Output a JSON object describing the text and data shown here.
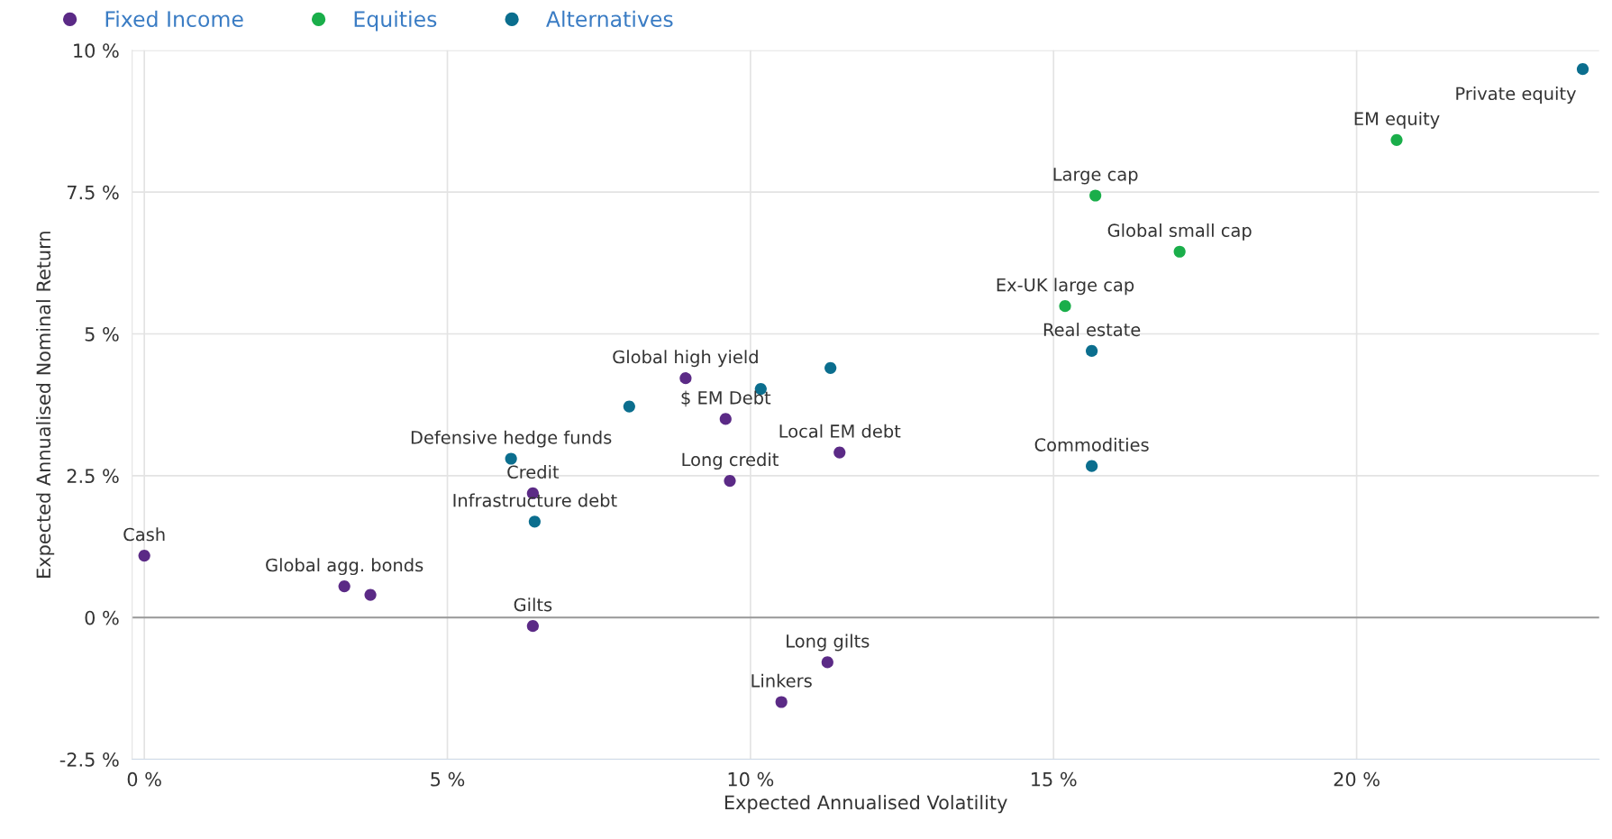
{
  "chart_data": {
    "type": "scatter",
    "xlabel": "Expected Annualised Volatility",
    "ylabel": "Expected Annualised Nominal Return",
    "xlim": [
      -0.2,
      24
    ],
    "ylim": [
      -2.5,
      10
    ],
    "xticks": [
      {
        "value": 0,
        "label": "0 %"
      },
      {
        "value": 5,
        "label": "5 %"
      },
      {
        "value": 10,
        "label": "10 %"
      },
      {
        "value": 15,
        "label": "15 %"
      },
      {
        "value": 20,
        "label": "20 %"
      }
    ],
    "yticks": [
      {
        "value": -2.5,
        "label": "-2.5 %"
      },
      {
        "value": 0,
        "label": "0 %"
      },
      {
        "value": 2.5,
        "label": "2.5 %"
      },
      {
        "value": 5,
        "label": "5 %"
      },
      {
        "value": 7.5,
        "label": "7.5 %"
      },
      {
        "value": 10,
        "label": "10 %"
      }
    ],
    "grid": true,
    "legend": "top left",
    "marker": "circle",
    "ref_lines": [
      {
        "axis": "y",
        "value": 0,
        "color": "#999999"
      }
    ],
    "series": [
      {
        "name": "Fixed Income",
        "color": "#5b2a86",
        "x": [
          0,
          3.3,
          3.73,
          8.93,
          9.59,
          11.47,
          9.66,
          6.41,
          6.41,
          11.27,
          10.51
        ],
        "values": [
          1.09,
          0.55,
          0.4,
          4.22,
          3.5,
          2.91,
          2.41,
          2.19,
          -0.15,
          -0.79,
          -1.49
        ]
      },
      {
        "name": "Equities",
        "color": "#1aae4a",
        "x": [
          15.69,
          20.66,
          17.08,
          15.19
        ],
        "values": [
          7.44,
          8.42,
          6.45,
          5.49
        ]
      },
      {
        "name": "Alternatives",
        "color": "#0b6e8e",
        "x": [
          23.73,
          15.63,
          15.63,
          11.32,
          10.17,
          8.0,
          6.05,
          6.44
        ],
        "values": [
          9.67,
          4.7,
          2.67,
          4.4,
          4.03,
          3.72,
          2.8,
          1.69
        ]
      }
    ],
    "annotations": [
      {
        "text": "Cash",
        "x": 0,
        "y": 1.09
      },
      {
        "text": "Global agg. bonds",
        "x": 3.3,
        "y": 0.55
      },
      {
        "text": "Global high yield",
        "x": 8.93,
        "y": 4.22
      },
      {
        "text": "$ EM Debt",
        "x": 9.59,
        "y": 3.5
      },
      {
        "text": "Local EM debt",
        "x": 11.47,
        "y": 2.91
      },
      {
        "text": "Long credit",
        "x": 9.66,
        "y": 2.41
      },
      {
        "text": "Credit",
        "x": 6.41,
        "y": 2.19
      },
      {
        "text": "Gilts",
        "x": 6.41,
        "y": -0.15
      },
      {
        "text": "Long gilts",
        "x": 11.27,
        "y": -0.79
      },
      {
        "text": "Linkers",
        "x": 10.51,
        "y": -1.49
      },
      {
        "text": "Large cap",
        "x": 15.69,
        "y": 7.44
      },
      {
        "text": "EM equity",
        "x": 20.66,
        "y": 8.42
      },
      {
        "text": "Global small cap",
        "x": 17.08,
        "y": 6.45
      },
      {
        "text": "Ex-UK large cap",
        "x": 15.19,
        "y": 5.49
      },
      {
        "text": "Private equity",
        "x": 23.73,
        "y": 9.67
      },
      {
        "text": "Real estate",
        "x": 15.63,
        "y": 4.7
      },
      {
        "text": "Commodities",
        "x": 15.63,
        "y": 2.67
      },
      {
        "text": "Defensive hedge funds",
        "x": 6.05,
        "y": 2.8
      },
      {
        "text": "Infrastructure debt",
        "x": 6.44,
        "y": 1.69
      }
    ]
  }
}
